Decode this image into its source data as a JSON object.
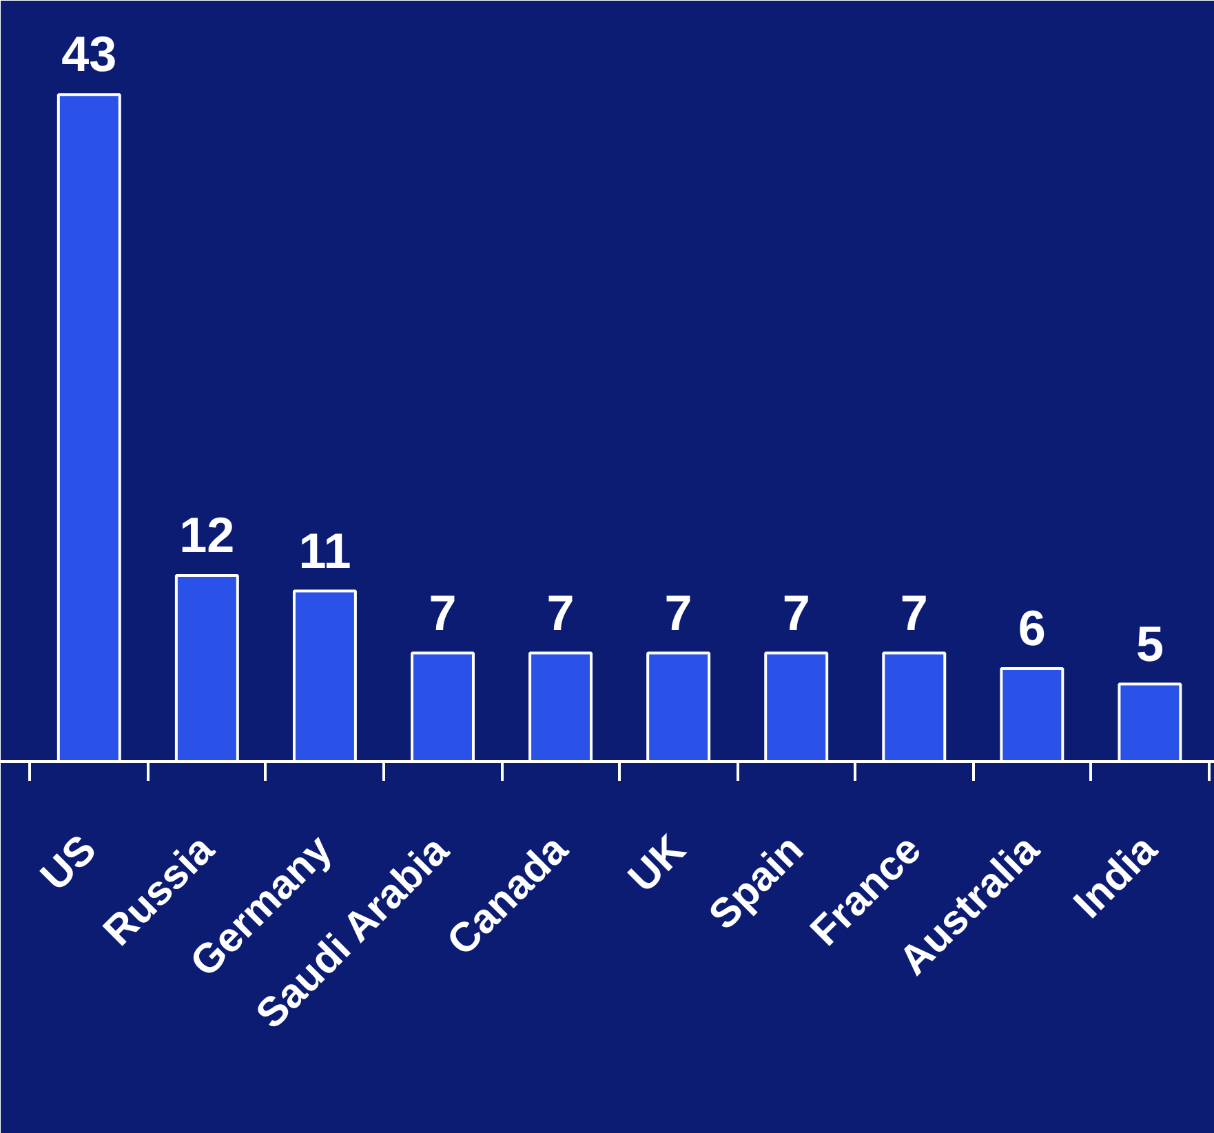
{
  "chart_data": {
    "type": "bar",
    "categories": [
      "US",
      "Russia",
      "Germany",
      "Saudi Arabia",
      "Canada",
      "UK",
      "Spain",
      "France",
      "Australia",
      "India"
    ],
    "values": [
      43,
      12,
      11,
      7,
      7,
      7,
      7,
      7,
      6,
      5
    ],
    "color": "#2a52e8",
    "data_labels": true
  }
}
